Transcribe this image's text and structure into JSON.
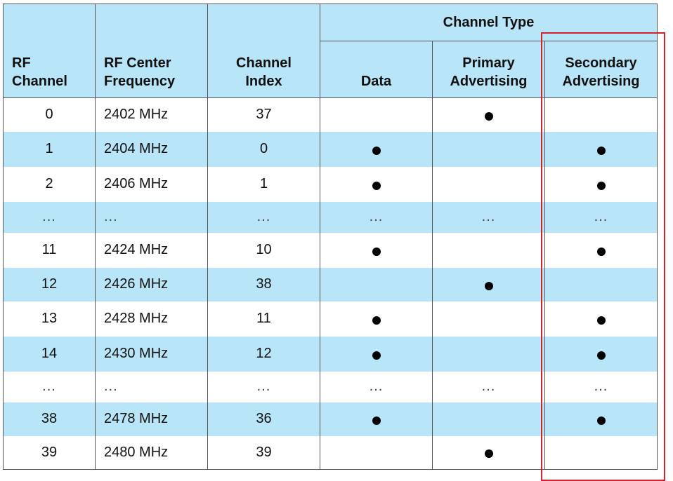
{
  "headers": {
    "rf_channel": [
      "RF",
      "Channel"
    ],
    "rf_center_frequency": [
      "RF Center",
      "Frequency"
    ],
    "channel_index": [
      "Channel",
      "Index"
    ],
    "channel_type": "Channel Type",
    "data": "Data",
    "primary_advertising": [
      "Primary",
      "Advertising"
    ],
    "secondary_advertising": [
      "Secondary",
      "Advertising"
    ]
  },
  "marker": "●",
  "ellipsis": "...",
  "rows": [
    {
      "rf_channel": "0",
      "frequency": "2402 MHz",
      "index": "37",
      "data": false,
      "primary": true,
      "secondary": false
    },
    {
      "rf_channel": "1",
      "frequency": "2404 MHz",
      "index": "0",
      "data": true,
      "primary": false,
      "secondary": true
    },
    {
      "rf_channel": "2",
      "frequency": "2406 MHz",
      "index": "1",
      "data": true,
      "primary": false,
      "secondary": true
    },
    {
      "ellipsis": true,
      "rf_channel": "...",
      "frequency": "...",
      "index": "..."
    },
    {
      "rf_channel": "11",
      "frequency": "2424 MHz",
      "index": "10",
      "data": true,
      "primary": false,
      "secondary": true
    },
    {
      "rf_channel": "12",
      "frequency": "2426 MHz",
      "index": "38",
      "data": false,
      "primary": true,
      "secondary": false
    },
    {
      "rf_channel": "13",
      "frequency": "2428 MHz",
      "index": "11",
      "data": true,
      "primary": false,
      "secondary": true
    },
    {
      "rf_channel": "14",
      "frequency": "2430 MHz",
      "index": "12",
      "data": true,
      "primary": false,
      "secondary": true
    },
    {
      "ellipsis": true,
      "rf_channel": "...",
      "frequency": "...",
      "index": "..."
    },
    {
      "rf_channel": "38",
      "frequency": "2478 MHz",
      "index": "36",
      "data": true,
      "primary": false,
      "secondary": true
    },
    {
      "rf_channel": "39",
      "frequency": "2480 MHz",
      "index": "39",
      "data": false,
      "primary": true,
      "secondary": false
    }
  ],
  "colors": {
    "header_bg": "#b8e5f8",
    "stripe_bg": "#b8e5f8",
    "highlight_box": "#d0242f"
  }
}
